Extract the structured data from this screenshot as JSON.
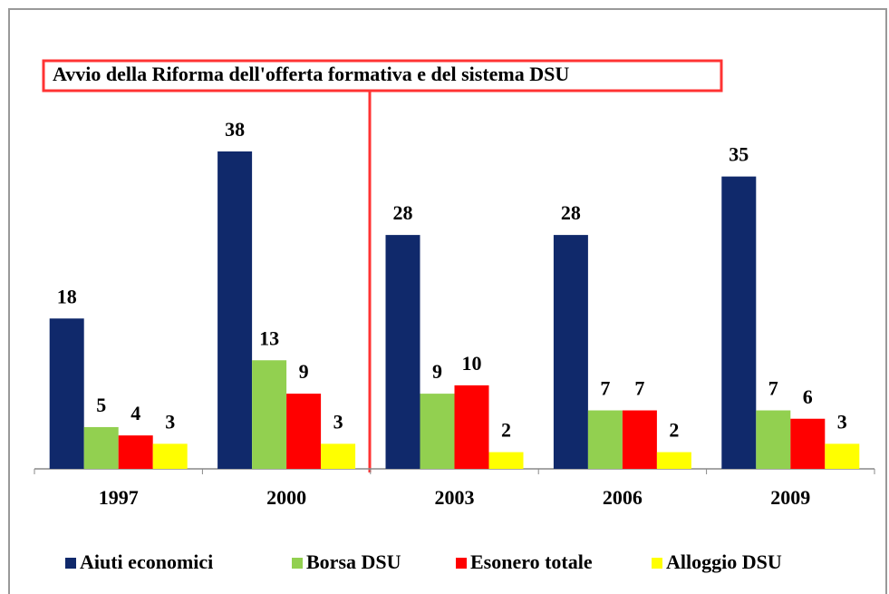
{
  "chart_data": {
    "type": "bar",
    "annotation": "Avvio della Riforma dell'offerta formativa e del sistema DSU",
    "categories": [
      "1997",
      "2000",
      "2003",
      "2006",
      "2009"
    ],
    "series": [
      {
        "name": "Aiuti economici",
        "color": "#10296b",
        "values": [
          18,
          38,
          28,
          28,
          35
        ]
      },
      {
        "name": "Borsa DSU",
        "color": "#92d050",
        "values": [
          5,
          13,
          9,
          7,
          7
        ]
      },
      {
        "name": "Esonero totale",
        "color": "#ff0000",
        "values": [
          4,
          9,
          10,
          7,
          6
        ]
      },
      {
        "name": "Alloggio DSU",
        "color": "#ffff00",
        "values": [
          3,
          3,
          2,
          2,
          3
        ]
      }
    ],
    "legend": "bottom"
  }
}
